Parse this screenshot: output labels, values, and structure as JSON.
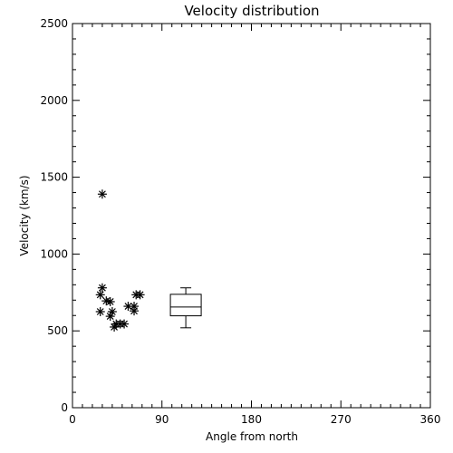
{
  "chart_data": {
    "type": "scatter",
    "title": "Velocity distribution",
    "xlabel": "Angle from north",
    "ylabel": "Velocity (km/s)",
    "xlim": [
      0,
      360
    ],
    "ylim": [
      0,
      2500
    ],
    "xticks": [
      0,
      90,
      180,
      270,
      360
    ],
    "yticks": [
      0,
      500,
      1000,
      1500,
      2000,
      2500
    ],
    "grid": false,
    "marker": "asterisk",
    "points": [
      {
        "x": 30,
        "y": 1390
      },
      {
        "x": 30,
        "y": 780
      },
      {
        "x": 28,
        "y": 735
      },
      {
        "x": 34,
        "y": 695
      },
      {
        "x": 38,
        "y": 690
      },
      {
        "x": 28,
        "y": 625
      },
      {
        "x": 40,
        "y": 625
      },
      {
        "x": 38,
        "y": 595
      },
      {
        "x": 44,
        "y": 545
      },
      {
        "x": 48,
        "y": 545
      },
      {
        "x": 52,
        "y": 545
      },
      {
        "x": 42,
        "y": 525
      },
      {
        "x": 56,
        "y": 660
      },
      {
        "x": 62,
        "y": 660
      },
      {
        "x": 62,
        "y": 630
      },
      {
        "x": 64,
        "y": 735
      },
      {
        "x": 68,
        "y": 735
      }
    ],
    "boxplot": {
      "x": 114,
      "min": 520,
      "q1": 598,
      "median": 655,
      "q3": 738,
      "max": 780
    }
  }
}
